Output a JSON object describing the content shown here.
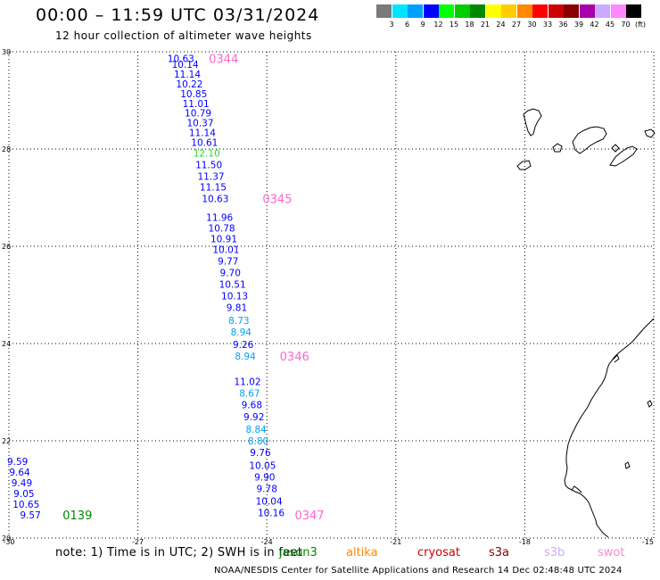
{
  "title": "00:00 – 11:59 UTC 03/31/2024",
  "subtitle": "12 hour collection of altimeter wave heights",
  "legend": {
    "unit": "(ft)",
    "bins": [
      {
        "label": "3",
        "color": "#7a7a7a"
      },
      {
        "label": "6",
        "color": "#00e5ff"
      },
      {
        "label": "9",
        "color": "#00a0ff"
      },
      {
        "label": "12",
        "color": "#0000ff"
      },
      {
        "label": "15",
        "color": "#00ff00"
      },
      {
        "label": "18",
        "color": "#00cc00"
      },
      {
        "label": "21",
        "color": "#008800"
      },
      {
        "label": "24",
        "color": "#ffff00"
      },
      {
        "label": "27",
        "color": "#ffcc00"
      },
      {
        "label": "30",
        "color": "#ff8800"
      },
      {
        "label": "33",
        "color": "#ff0000"
      },
      {
        "label": "36",
        "color": "#cc0000"
      },
      {
        "label": "39",
        "color": "#880000"
      },
      {
        "label": "42",
        "color": "#aa00aa"
      },
      {
        "label": "45",
        "color": "#ccaaff"
      },
      {
        "label": "70",
        "color": "#ff88ff"
      },
      {
        "label": "",
        "color": "#000000"
      }
    ]
  },
  "map": {
    "lon_range": [
      -30,
      -15
    ],
    "lat_range": [
      20,
      30
    ],
    "lon_ticks": [
      "-30",
      "-27",
      "-24",
      "-21",
      "-18",
      "-15"
    ],
    "lat_ticks": [
      "30",
      "28",
      "26",
      "24",
      "22",
      "20"
    ],
    "grid": true,
    "grid_color": "#000000",
    "coast_color": "#000000"
  },
  "observations": [
    {
      "lon": -26.0,
      "lat": 29.86,
      "text": "10.63",
      "color": "#0000ff"
    },
    {
      "lon": -25.9,
      "lat": 29.74,
      "text": "10.14",
      "color": "#0000ff"
    },
    {
      "lon": -25.85,
      "lat": 29.54,
      "text": "11.14",
      "color": "#0000ff"
    },
    {
      "lon": -25.8,
      "lat": 29.34,
      "text": "10.22",
      "color": "#0000ff"
    },
    {
      "lon": -25.7,
      "lat": 29.14,
      "text": "10.85",
      "color": "#0000ff"
    },
    {
      "lon": -25.65,
      "lat": 28.94,
      "text": "11.01",
      "color": "#0000ff"
    },
    {
      "lon": -25.6,
      "lat": 28.74,
      "text": "10.79",
      "color": "#0000ff"
    },
    {
      "lon": -25.55,
      "lat": 28.54,
      "text": "10.37",
      "color": "#0000ff"
    },
    {
      "lon": -25.5,
      "lat": 28.34,
      "text": "11.14",
      "color": "#0000ff"
    },
    {
      "lon": -25.45,
      "lat": 28.14,
      "text": "10.61",
      "color": "#0000ff"
    },
    {
      "lon": -25.4,
      "lat": 27.92,
      "text": "12.10",
      "color": "#22dd22"
    },
    {
      "lon": -25.35,
      "lat": 27.68,
      "text": "11.50",
      "color": "#0000ff"
    },
    {
      "lon": -25.3,
      "lat": 27.44,
      "text": "11.37",
      "color": "#0000ff"
    },
    {
      "lon": -25.25,
      "lat": 27.22,
      "text": "11.15",
      "color": "#0000ff"
    },
    {
      "lon": -25.2,
      "lat": 26.98,
      "text": "10.63",
      "color": "#0000ff"
    },
    {
      "lon": -25.1,
      "lat": 26.6,
      "text": "11.96",
      "color": "#0000ff"
    },
    {
      "lon": -25.05,
      "lat": 26.38,
      "text": "10.78",
      "color": "#0000ff"
    },
    {
      "lon": -25.0,
      "lat": 26.16,
      "text": "10.91",
      "color": "#0000ff"
    },
    {
      "lon": -24.95,
      "lat": 25.94,
      "text": "10.01",
      "color": "#0000ff"
    },
    {
      "lon": -24.9,
      "lat": 25.7,
      "text": "9.77",
      "color": "#0000ff"
    },
    {
      "lon": -24.85,
      "lat": 25.46,
      "text": "9.70",
      "color": "#0000ff"
    },
    {
      "lon": -24.8,
      "lat": 25.22,
      "text": "10.51",
      "color": "#0000ff"
    },
    {
      "lon": -24.75,
      "lat": 24.98,
      "text": "10.13",
      "color": "#0000ff"
    },
    {
      "lon": -24.7,
      "lat": 24.74,
      "text": "9.81",
      "color": "#0000ff"
    },
    {
      "lon": -24.65,
      "lat": 24.48,
      "text": "8.73",
      "color": "#00a0ff"
    },
    {
      "lon": -24.6,
      "lat": 24.24,
      "text": "8.94",
      "color": "#00a0ff"
    },
    {
      "lon": -24.55,
      "lat": 23.98,
      "text": "9.26",
      "color": "#0000ff"
    },
    {
      "lon": -24.5,
      "lat": 23.74,
      "text": "8.94",
      "color": "#00a0ff"
    },
    {
      "lon": -24.45,
      "lat": 23.22,
      "text": "11.02",
      "color": "#0000ff"
    },
    {
      "lon": -24.4,
      "lat": 22.98,
      "text": "8.67",
      "color": "#00a0ff"
    },
    {
      "lon": -24.35,
      "lat": 22.74,
      "text": "9.68",
      "color": "#0000ff"
    },
    {
      "lon": -24.3,
      "lat": 22.5,
      "text": "9.92",
      "color": "#0000ff"
    },
    {
      "lon": -24.25,
      "lat": 22.24,
      "text": "8.84",
      "color": "#00a0ff"
    },
    {
      "lon": -24.2,
      "lat": 22.0,
      "text": "8.80",
      "color": "#00a0ff"
    },
    {
      "lon": -24.15,
      "lat": 21.76,
      "text": "9.76",
      "color": "#0000ff"
    },
    {
      "lon": -24.1,
      "lat": 21.5,
      "text": "10.05",
      "color": "#0000ff"
    },
    {
      "lon": -24.05,
      "lat": 21.26,
      "text": "9.90",
      "color": "#0000ff"
    },
    {
      "lon": -24.0,
      "lat": 21.02,
      "text": "9.78",
      "color": "#0000ff"
    },
    {
      "lon": -23.95,
      "lat": 20.76,
      "text": "10.04",
      "color": "#0000ff"
    },
    {
      "lon": -23.9,
      "lat": 20.52,
      "text": "10.16",
      "color": "#0000ff"
    },
    {
      "lon": -29.8,
      "lat": 21.58,
      "text": "9.59",
      "color": "#0000ff"
    },
    {
      "lon": -29.75,
      "lat": 21.36,
      "text": "9.64",
      "color": "#0000ff"
    },
    {
      "lon": -29.7,
      "lat": 21.14,
      "text": "9.49",
      "color": "#0000ff"
    },
    {
      "lon": -29.65,
      "lat": 20.92,
      "text": "9.05",
      "color": "#0000ff"
    },
    {
      "lon": -29.6,
      "lat": 20.7,
      "text": "10.65",
      "color": "#0000ff"
    },
    {
      "lon": -29.5,
      "lat": 20.48,
      "text": "9.57",
      "color": "#0000ff"
    }
  ],
  "passes": [
    {
      "lon": -25.35,
      "lat": 29.86,
      "text": "0344",
      "color": "#ff66cc"
    },
    {
      "lon": -24.1,
      "lat": 26.98,
      "text": "0345",
      "color": "#ff66cc"
    },
    {
      "lon": -23.7,
      "lat": 23.74,
      "text": "0346",
      "color": "#ff66cc"
    },
    {
      "lon": -23.35,
      "lat": 20.48,
      "text": "0347",
      "color": "#ff66cc"
    },
    {
      "lon": -28.75,
      "lat": 20.48,
      "text": "0139",
      "color": "#008800"
    }
  ],
  "note": {
    "text": "note:  1) Time is in UTC;  2) SWH is in feet",
    "satellites": [
      {
        "name": "jason3",
        "color": "#008800"
      },
      {
        "name": "altika",
        "color": "#ff8800"
      },
      {
        "name": "cryosat",
        "color": "#cc0000"
      },
      {
        "name": "s3a",
        "color": "#880000"
      },
      {
        "name": "s3b",
        "color": "#ccaaff"
      },
      {
        "name": "swot",
        "color": "#ff88cc"
      }
    ]
  },
  "credit": "NOAA/NESDIS Center for Satellite Applications and Research    14 Dec 02:48:48 UTC 2024"
}
